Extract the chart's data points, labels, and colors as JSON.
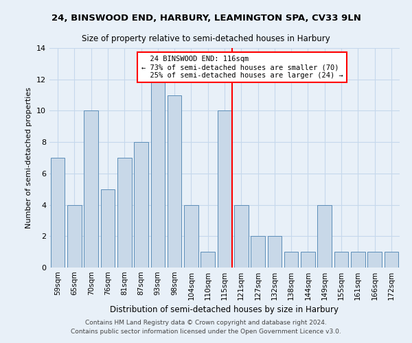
{
  "title": "24, BINSWOOD END, HARBURY, LEAMINGTON SPA, CV33 9LN",
  "subtitle": "Size of property relative to semi-detached houses in Harbury",
  "xlabel": "Distribution of semi-detached houses by size in Harbury",
  "ylabel": "Number of semi-detached properties",
  "footer_line1": "Contains HM Land Registry data © Crown copyright and database right 2024.",
  "footer_line2": "Contains public sector information licensed under the Open Government Licence v3.0.",
  "categories": [
    "59sqm",
    "65sqm",
    "70sqm",
    "76sqm",
    "81sqm",
    "87sqm",
    "93sqm",
    "98sqm",
    "104sqm",
    "110sqm",
    "115sqm",
    "121sqm",
    "127sqm",
    "132sqm",
    "138sqm",
    "144sqm",
    "149sqm",
    "155sqm",
    "161sqm",
    "166sqm",
    "172sqm"
  ],
  "values": [
    7,
    4,
    10,
    5,
    7,
    8,
    12,
    11,
    4,
    1,
    10,
    4,
    2,
    2,
    1,
    1,
    4,
    1,
    1,
    1,
    1
  ],
  "bar_color": "#c8d8e8",
  "bar_edgecolor": "#5b8db8",
  "grid_color": "#c5d8ec",
  "background_color": "#e8f0f8",
  "red_line_x": 10.45,
  "annotation_text": "  24 BINSWOOD END: 116sqm\n← 73% of semi-detached houses are smaller (70)\n  25% of semi-detached houses are larger (24) →",
  "ylim": [
    0,
    14
  ],
  "yticks": [
    0,
    2,
    4,
    6,
    8,
    10,
    12,
    14
  ],
  "title_fontsize": 9.5,
  "subtitle_fontsize": 8.5
}
